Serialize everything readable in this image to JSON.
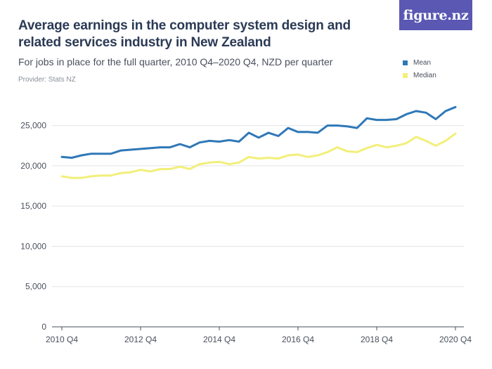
{
  "header": {
    "title": "Average earnings in the computer system design and related services industry in New Zealand",
    "subtitle": "For jobs in place for the full quarter, 2010 Q4–2020 Q4, NZD per quarter",
    "provider": "Provider: Stats NZ",
    "logo": "figure.nz"
  },
  "colors": {
    "mean": "#2e78b7",
    "median": "#f2ef7a",
    "grid": "#e4e4e4",
    "axis": "#4a4f5c",
    "logo_bg": "#5a58b3"
  },
  "chart_data": {
    "type": "line",
    "title": "Average earnings in the computer system design and related services industry in New Zealand",
    "xlabel": "",
    "ylabel": "",
    "ylim": [
      0,
      27500
    ],
    "yticks": [
      0,
      5000,
      10000,
      15000,
      20000,
      25000
    ],
    "ytick_labels": [
      "0",
      "5,000",
      "10,000",
      "15,000",
      "20,000",
      "25,000"
    ],
    "xtick_labels": [
      "2010 Q4",
      "2012 Q4",
      "2014 Q4",
      "2016 Q4",
      "2018 Q4",
      "2020 Q4"
    ],
    "grid": true,
    "legend_position": "top-right",
    "x": [
      "2010 Q4",
      "2011 Q1",
      "2011 Q2",
      "2011 Q3",
      "2011 Q4",
      "2012 Q1",
      "2012 Q2",
      "2012 Q3",
      "2012 Q4",
      "2013 Q1",
      "2013 Q2",
      "2013 Q3",
      "2013 Q4",
      "2014 Q1",
      "2014 Q2",
      "2014 Q3",
      "2014 Q4",
      "2015 Q1",
      "2015 Q2",
      "2015 Q3",
      "2015 Q4",
      "2016 Q1",
      "2016 Q2",
      "2016 Q3",
      "2016 Q4",
      "2017 Q1",
      "2017 Q2",
      "2017 Q3",
      "2017 Q4",
      "2018 Q1",
      "2018 Q2",
      "2018 Q3",
      "2018 Q4",
      "2019 Q1",
      "2019 Q2",
      "2019 Q3",
      "2019 Q4",
      "2020 Q1",
      "2020 Q2",
      "2020 Q3",
      "2020 Q4"
    ],
    "series": [
      {
        "name": "Mean",
        "values": [
          21100,
          21000,
          21300,
          21500,
          21500,
          21500,
          21900,
          22000,
          22100,
          22200,
          22300,
          22300,
          22700,
          22300,
          22900,
          23100,
          23000,
          23200,
          23000,
          24100,
          23500,
          24100,
          23700,
          24700,
          24200,
          24200,
          24100,
          25000,
          25000,
          24900,
          24700,
          25900,
          25700,
          25700,
          25800,
          26400,
          26800,
          26600,
          25800,
          26800,
          27300
        ]
      },
      {
        "name": "Median",
        "values": [
          18700,
          18500,
          18500,
          18700,
          18800,
          18800,
          19100,
          19200,
          19500,
          19300,
          19600,
          19600,
          19900,
          19600,
          20200,
          20400,
          20500,
          20200,
          20400,
          21100,
          20900,
          21000,
          20900,
          21300,
          21400,
          21100,
          21300,
          21700,
          22300,
          21800,
          21700,
          22200,
          22600,
          22300,
          22500,
          22800,
          23600,
          23100,
          22500,
          23100,
          24000
        ]
      }
    ]
  }
}
